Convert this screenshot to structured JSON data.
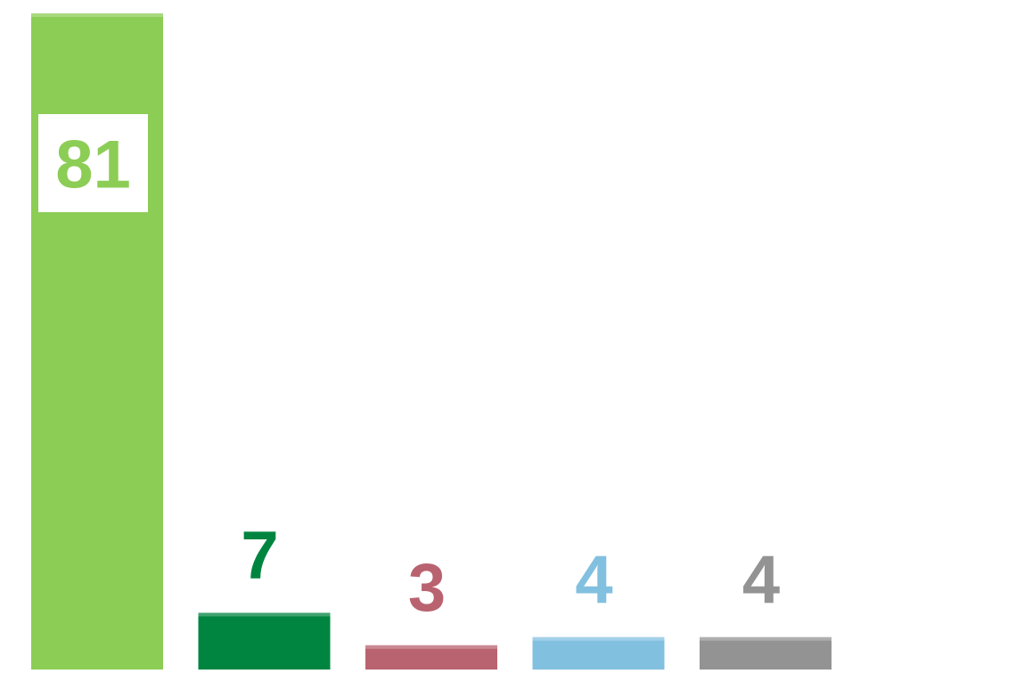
{
  "chart_data": {
    "type": "bar",
    "categories": [
      null,
      null,
      null,
      null,
      null
    ],
    "values": [
      81,
      7,
      3,
      4,
      4
    ],
    "colors": [
      "#8ccd55",
      "#008540",
      "#b96370",
      "#82c0e0",
      "#939393"
    ]
  }
}
